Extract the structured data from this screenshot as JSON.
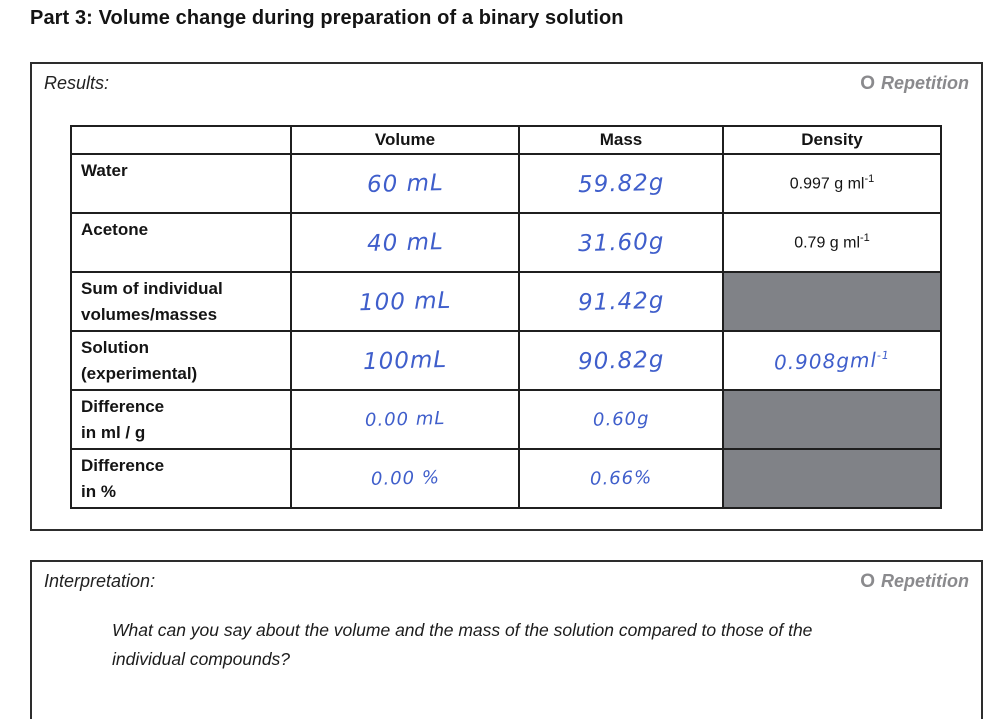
{
  "page": {
    "title": "Part 3: Volume change during preparation of a binary solution"
  },
  "results": {
    "label": "Results:",
    "repetition": {
      "marker": "O",
      "label": "Repetition"
    },
    "table": {
      "headers": {
        "c0": "",
        "c1": "Volume",
        "c2": "Mass",
        "c3": "Density"
      },
      "rows": [
        {
          "label1": "Water",
          "label2": "",
          "volume": "60 mL",
          "mass": "59.82g",
          "density_base": "0.997 g ml",
          "density_sup": "-1"
        },
        {
          "label1": "Acetone",
          "label2": "",
          "volume": "40 mL",
          "mass": "31.60g",
          "density_base": "0.79 g ml",
          "density_sup": "-1"
        },
        {
          "label1": "Sum of individual",
          "label2": "volumes/masses",
          "volume": "100 mL",
          "mass": "91.42g",
          "density_base": "",
          "density_sup": ""
        },
        {
          "label1": "Solution",
          "label2": "(experimental)",
          "volume": "100mL",
          "mass": "90.82g",
          "density_base": "0.908gml",
          "density_sup": "-1"
        },
        {
          "label1": "Difference",
          "label2": "in ml / g",
          "volume": "0.00 mL",
          "mass": "0.60g",
          "density_base": "",
          "density_sup": ""
        },
        {
          "label1": "Difference",
          "label2": "in %",
          "volume": "0.00 %",
          "mass": "0.66%",
          "density_base": "",
          "density_sup": ""
        }
      ]
    }
  },
  "interpretation": {
    "label": "Interpretation:",
    "repetition": {
      "marker": "O",
      "label": "Repetition"
    },
    "question_line1": "What can you say about the volume and the mass of the solution compared to those of the",
    "question_line2": "individual compounds?"
  },
  "colors": {
    "handwriting_ink": "#3f5ecb",
    "shaded_cell": "#808287",
    "repetition_gray": "#8a8a8d"
  }
}
